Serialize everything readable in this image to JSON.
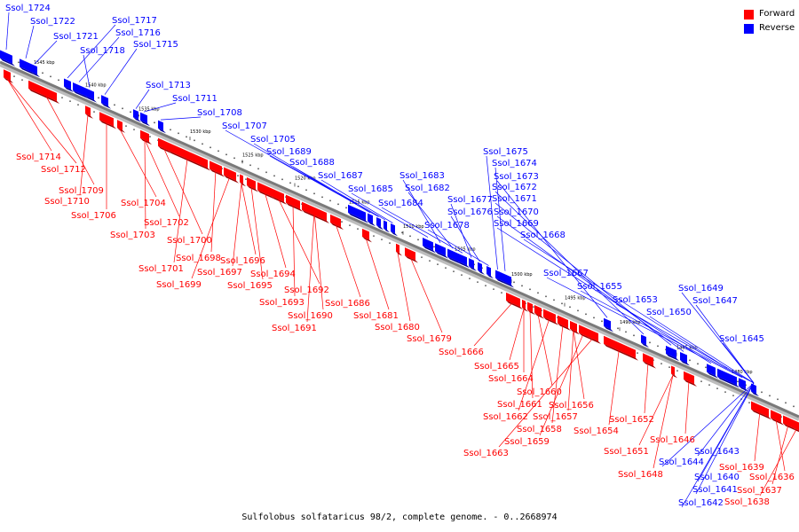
{
  "colors": {
    "forward": "#ff0000",
    "reverse": "#0000ff",
    "forward_dark": "#9a0000",
    "reverse_dark": "#00009a",
    "axis": "#7a7a7a"
  },
  "legend": {
    "forward": "Forward",
    "reverse": "Reverse"
  },
  "caption": "Sulfolobus solfataricus 98/2, complete genome. - 0..2668974",
  "ticks": [
    "1545 kbp",
    "1540 kbp",
    "1535 kbp",
    "1530 kbp",
    "1525 kbp",
    "1520 kbp",
    "1515 kbp",
    "1510 kbp",
    "1505 kbp",
    "1500 kbp",
    "1495 kbp",
    "1490 kbp",
    "1485 kbp",
    "1480 kbp"
  ],
  "reverse_labels": [
    "Ssol_1724",
    "Ssol_1722",
    "Ssol_1721",
    "Ssol_1717",
    "Ssol_1716",
    "Ssol_1718",
    "Ssol_1715",
    "Ssol_1713",
    "Ssol_1711",
    "Ssol_1708",
    "Ssol_1707",
    "Ssol_1705",
    "Ssol_1689",
    "Ssol_1688",
    "Ssol_1687",
    "Ssol_1685",
    "Ssol_1683",
    "Ssol_1682",
    "Ssol_1684",
    "Ssol_1677",
    "Ssol_1676",
    "Ssol_1678",
    "Ssol_1675",
    "Ssol_1674",
    "Ssol_1673",
    "Ssol_1672",
    "Ssol_1671",
    "Ssol_1670",
    "Ssol_1669",
    "Ssol_1668",
    "Ssol_1667",
    "Ssol_1655",
    "Ssol_1653",
    "Ssol_1650",
    "Ssol_1649",
    "Ssol_1647",
    "Ssol_1645",
    "Ssol_1643",
    "Ssol_1644",
    "Ssol_1640",
    "Ssol_1641",
    "Ssol_1642"
  ],
  "forward_labels": [
    "Ssol_1714",
    "Ssol_1712",
    "Ssol_1709",
    "Ssol_1710",
    "Ssol_1706",
    "Ssol_1704",
    "Ssol_1702",
    "Ssol_1703",
    "Ssol_1700",
    "Ssol_1701",
    "Ssol_1698",
    "Ssol_1699",
    "Ssol_1697",
    "Ssol_1696",
    "Ssol_1695",
    "Ssol_1694",
    "Ssol_1692",
    "Ssol_1693",
    "Ssol_1690",
    "Ssol_1691",
    "Ssol_1686",
    "Ssol_1681",
    "Ssol_1680",
    "Ssol_1679",
    "Ssol_1666",
    "Ssol_1665",
    "Ssol_1664",
    "Ssol_1661",
    "Ssol_1660",
    "Ssol_1662",
    "Ssol_1658",
    "Ssol_1657",
    "Ssol_1656",
    "Ssol_1659",
    "Ssol_1663",
    "Ssol_1654",
    "Ssol_1652",
    "Ssol_1651",
    "Ssol_1648",
    "Ssol_1646",
    "Ssol_1639",
    "Ssol_1636",
    "Ssol_1637",
    "Ssol_1638"
  ]
}
